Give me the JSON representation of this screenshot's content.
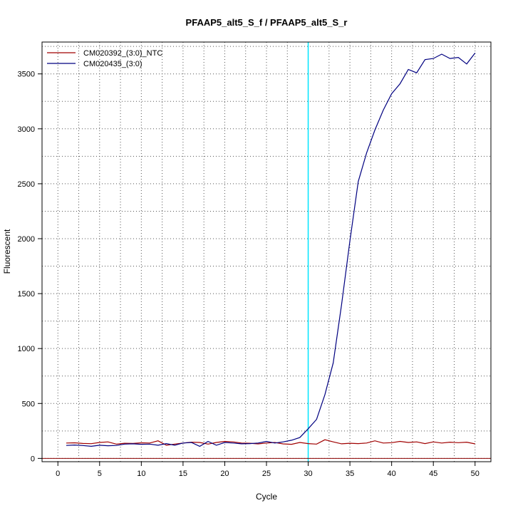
{
  "chart_data": {
    "type": "line",
    "title": "PFAAP5_alt5_S_f / PFAAP5_alt5_S_r",
    "xlabel": "Cycle",
    "ylabel": "Fluorescent",
    "xlim": [
      -1.9,
      51.9
    ],
    "ylim": [
      -30,
      3790
    ],
    "xticks": [
      0,
      5,
      10,
      15,
      20,
      25,
      30,
      35,
      40,
      45,
      50
    ],
    "yticks": [
      0,
      500,
      1000,
      1500,
      2000,
      2500,
      3000,
      3500
    ],
    "grid_x": [
      2.5,
      7.5,
      12.5,
      17.5,
      22.5,
      27.5,
      32.5,
      37.5,
      42.5,
      47.5
    ],
    "grid_y": [
      250,
      750,
      1250,
      1750,
      2250,
      2750,
      3250,
      3750,
      3500,
      3000,
      2500,
      2000,
      1500,
      1000,
      500
    ],
    "threshold_x": 30,
    "threshold_color": "#00e5ff",
    "baseline_y": 0,
    "baseline_color": "#8b0000",
    "legend_position": "top-left",
    "series": [
      {
        "name": "CM020392_(3:0)_NTC",
        "color": "#a00000",
        "x": [
          1,
          2,
          3,
          4,
          5,
          6,
          7,
          8,
          9,
          10,
          11,
          12,
          13,
          14,
          15,
          16,
          17,
          18,
          19,
          20,
          21,
          22,
          23,
          24,
          25,
          26,
          27,
          28,
          29,
          30,
          31,
          32,
          33,
          34,
          35,
          36,
          37,
          38,
          39,
          40,
          41,
          42,
          43,
          44,
          45,
          46,
          47,
          48,
          49,
          50
        ],
        "values": [
          140,
          142,
          136,
          134,
          145,
          150,
          130,
          138,
          136,
          142,
          140,
          160,
          120,
          130,
          140,
          148,
          145,
          130,
          145,
          155,
          150,
          140,
          138,
          132,
          140,
          145,
          132,
          128,
          145,
          135,
          130,
          170,
          150,
          133,
          138,
          135,
          140,
          160,
          140,
          143,
          155,
          145,
          150,
          135,
          150,
          140,
          148,
          143,
          148,
          132
        ]
      },
      {
        "name": "CM020435_(3:0)",
        "color": "#000080",
        "x": [
          1,
          2,
          3,
          4,
          5,
          6,
          7,
          8,
          9,
          10,
          11,
          12,
          13,
          14,
          15,
          16,
          17,
          18,
          19,
          20,
          21,
          22,
          23,
          24,
          25,
          26,
          27,
          28,
          29,
          30,
          31,
          32,
          33,
          34,
          35,
          36,
          37,
          38,
          39,
          40,
          41,
          42,
          43,
          44,
          45,
          46,
          47,
          48,
          49,
          50
        ],
        "values": [
          118,
          122,
          117,
          110,
          120,
          115,
          118,
          130,
          133,
          128,
          130,
          120,
          135,
          120,
          140,
          145,
          110,
          155,
          120,
          145,
          140,
          133,
          135,
          140,
          155,
          140,
          150,
          165,
          190,
          270,
          355,
          580,
          870,
          1400,
          1980,
          2520,
          2780,
          2990,
          3170,
          3320,
          3410,
          3540,
          3510,
          3630,
          3640,
          3680,
          3640,
          3650,
          3590,
          3690
        ]
      }
    ]
  }
}
